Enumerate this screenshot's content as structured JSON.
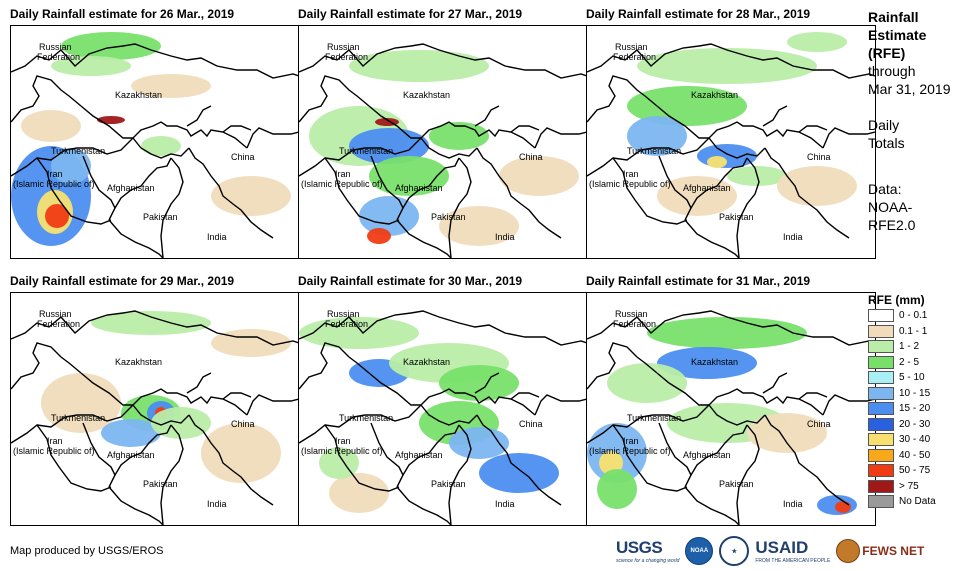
{
  "panels": [
    {
      "title": "Daily Rainfall estimate for 26 Mar., 2019"
    },
    {
      "title": "Daily Rainfall estimate for 27 Mar., 2019"
    },
    {
      "title": "Daily Rainfall estimate for 28 Mar., 2019"
    },
    {
      "title": "Daily Rainfall estimate for 29 Mar., 2019"
    },
    {
      "title": "Daily Rainfall estimate for 30 Mar., 2019"
    },
    {
      "title": "Daily Rainfall estimate for 31 Mar., 2019"
    }
  ],
  "map_labels": {
    "russia_1": "Russian",
    "russia_2": "Federation",
    "kazakhstan": "Kazakhstan",
    "turkmenistan": "Turkmenistan",
    "iran_1": "Iran",
    "iran_2": "(Islamic Republic of)",
    "afghanistan": "Afghanistan",
    "pakistan": "Pakistan",
    "china": "China",
    "india": "India"
  },
  "sidebar": {
    "title_lines": [
      "Rainfall",
      "Estimate",
      "(RFE)"
    ],
    "through_lines": [
      "through",
      "Mar 31, 2019"
    ],
    "daily_lines": [
      "Daily",
      "Totals"
    ],
    "data_lines": [
      "Data:",
      "NOAA-",
      "RFE2.0"
    ]
  },
  "legend": {
    "title": "RFE (mm)",
    "items": [
      {
        "label": "0 - 0.1",
        "color": "#ffffff"
      },
      {
        "label": "0.1 - 1",
        "color": "#f0dcbb"
      },
      {
        "label": "1 - 2",
        "color": "#b9eda8"
      },
      {
        "label": "2 - 5",
        "color": "#78e06a"
      },
      {
        "label": "5 - 10",
        "color": "#a8f0f4"
      },
      {
        "label": "10 - 15",
        "color": "#7cb6f0"
      },
      {
        "label": "15 - 20",
        "color": "#4c8ef0"
      },
      {
        "label": "20 - 30",
        "color": "#2860e0"
      },
      {
        "label": "30 - 40",
        "color": "#f8e070"
      },
      {
        "label": "40 - 50",
        "color": "#f8a818"
      },
      {
        "label": "50 - 75",
        "color": "#f03c14"
      },
      {
        "label": "> 75",
        "color": "#a01818"
      },
      {
        "label": "No Data",
        "color": "#9a9a9a"
      }
    ]
  },
  "footer": {
    "credit": "Map produced by USGS/EROS",
    "logos": {
      "usgs": "USGS",
      "usgs_tagline": "science for a changing world",
      "noaa": "NOAA",
      "usaid": "USAID",
      "usaid_tagline": "FROM THE AMERICAN PEOPLE",
      "fews": "FEWS NET"
    }
  }
}
